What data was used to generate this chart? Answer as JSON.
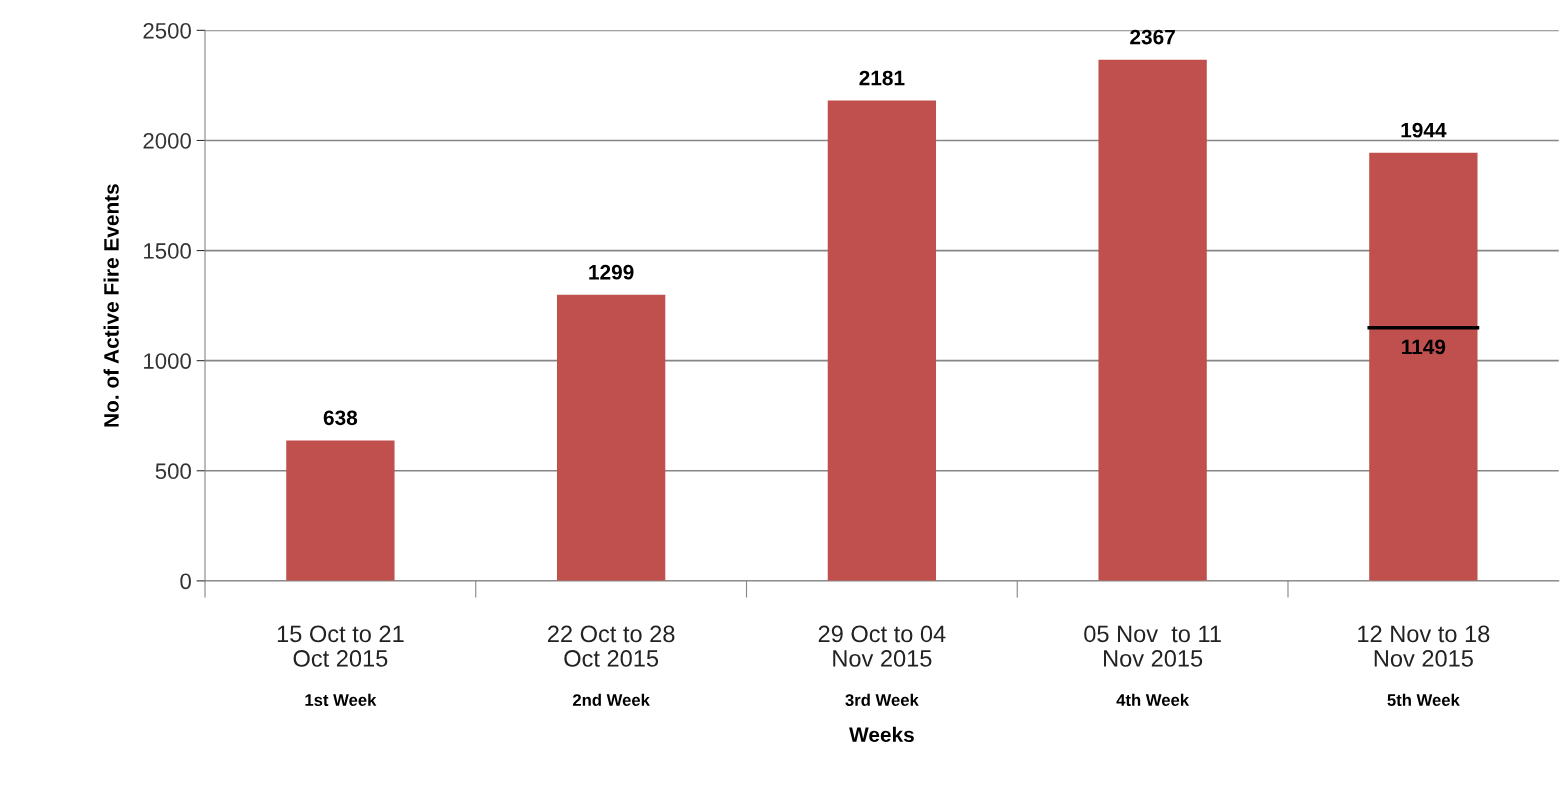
{
  "chart_data": {
    "type": "bar",
    "xlabel": "Weeks",
    "ylabel": "No. of Active Fire Events",
    "categories": [
      "15 Oct to 21\nOct 2015\n1st Week",
      "22 Oct to 28\nOct 2015\n2nd Week",
      "29 Oct to 04\nNov 2015\n3rd Week",
      "05 Nov  to 11\nNov 2015\n4th Week",
      "12 Nov to 18\nNov 2015\n5th Week"
    ],
    "values": [
      638,
      1299,
      2181,
      2367,
      1944
    ],
    "color": "#c0504d",
    "ylim": [
      0,
      2500
    ],
    "yticks": [
      0,
      500,
      1000,
      1500,
      2000,
      2500
    ],
    "grid": "y",
    "data_labels": true,
    "ref_lines": [
      {
        "axis": "y",
        "value": 1149,
        "label": "1149",
        "color": "#000000"
      }
    ]
  }
}
